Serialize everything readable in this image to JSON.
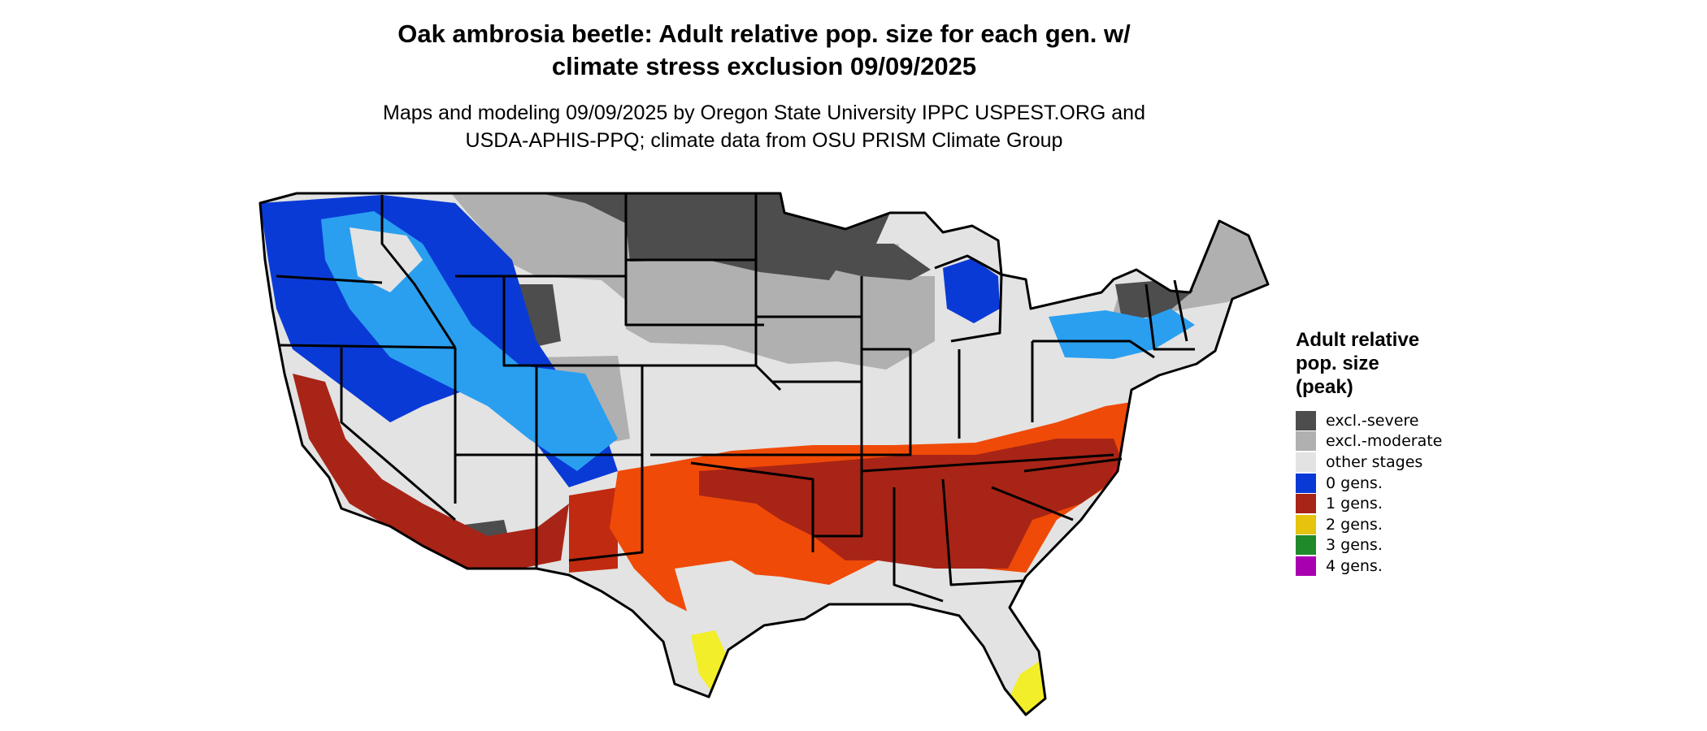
{
  "title": {
    "line1": "Oak ambrosia beetle: Adult relative pop. size for each gen. w/",
    "line2": "climate stress exclusion 09/09/2025"
  },
  "subtitle": {
    "line1": "Maps and modeling 09/09/2025 by Oregon State University IPPC USPEST.ORG and",
    "line2": "USDA-APHIS-PPQ; climate data from OSU PRISM Climate Group"
  },
  "legend": {
    "title_lines": [
      "Adult relative",
      "pop. size",
      "(peak)"
    ],
    "items": [
      {
        "label": "excl.-severe",
        "color": "#4d4d4d"
      },
      {
        "label": "excl.-moderate",
        "color": "#b0b0b0"
      },
      {
        "label": "other stages",
        "color": "#e3e3e3"
      },
      {
        "label": "0 gens.",
        "color": "#0a3ad6"
      },
      {
        "label": "1 gens.",
        "color": "#a82416"
      },
      {
        "label": "2 gens.",
        "color": "#e6c30c"
      },
      {
        "label": "3 gens.",
        "color": "#1f8a2a"
      },
      {
        "label": "4 gens.",
        "color": "#a800b0"
      }
    ]
  },
  "map_colors": {
    "border": "#000000",
    "orange": "#f04a08",
    "light_blue": "#2a9ff0",
    "yellow": "#f2ee2a"
  }
}
